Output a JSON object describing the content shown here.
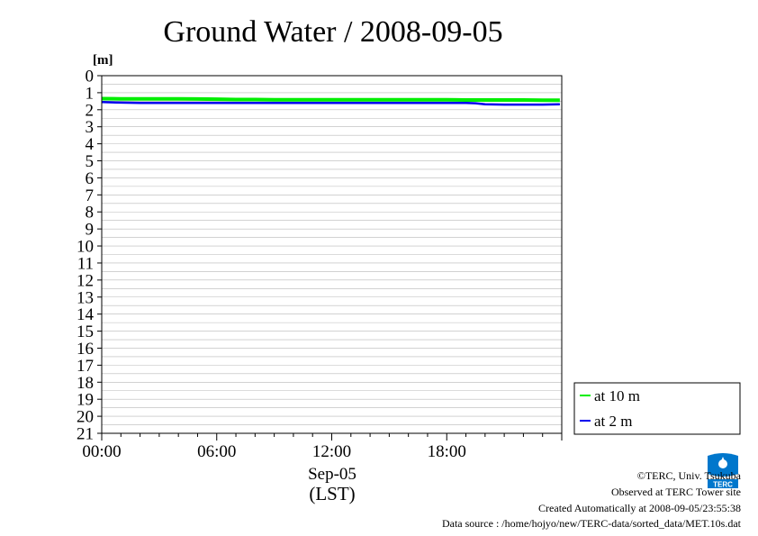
{
  "chart_data": {
    "type": "line",
    "title": "Ground Water / 2008-09-05",
    "ylabel": "[m]",
    "ylim": [
      0,
      21
    ],
    "y_inverted": true,
    "yticks": [
      "0",
      "1",
      "2",
      "3",
      "4",
      "5",
      "6",
      "7",
      "8",
      "9",
      "10",
      "11",
      "12",
      "13",
      "14",
      "15",
      "16",
      "17",
      "18",
      "19",
      "20",
      "21"
    ],
    "xlim": [
      0,
      24
    ],
    "xticks": [
      {
        "value": 0,
        "label": "00:00"
      },
      {
        "value": 6,
        "label": "06:00"
      },
      {
        "value": 12,
        "label": "12:00"
      },
      {
        "value": 18,
        "label": "18:00"
      }
    ],
    "xdate_label": "Sep-05",
    "xunit_label": "(LST)",
    "grid": true,
    "legend_position": "lower-right, outside plot",
    "series": [
      {
        "name": "at 10 m",
        "color": "#00ee00",
        "x": [
          0,
          1,
          2,
          3,
          4,
          5,
          6,
          7,
          8,
          9,
          10,
          11,
          12,
          13,
          14,
          15,
          16,
          17,
          18,
          19,
          20,
          21,
          22,
          23,
          23.9
        ],
        "y": [
          1.35,
          1.36,
          1.36,
          1.36,
          1.36,
          1.37,
          1.38,
          1.4,
          1.4,
          1.41,
          1.41,
          1.41,
          1.41,
          1.42,
          1.42,
          1.42,
          1.42,
          1.42,
          1.42,
          1.43,
          1.43,
          1.43,
          1.43,
          1.44,
          1.44
        ]
      },
      {
        "name": "at 2 m",
        "color": "#0000ee",
        "x": [
          0,
          1,
          2,
          3,
          4,
          5,
          6,
          7,
          8,
          9,
          10,
          11,
          12,
          13,
          14,
          15,
          16,
          17,
          18,
          19,
          19.5,
          20,
          21,
          22,
          23,
          23.9
        ],
        "y": [
          1.55,
          1.58,
          1.6,
          1.6,
          1.6,
          1.6,
          1.6,
          1.6,
          1.6,
          1.6,
          1.6,
          1.6,
          1.6,
          1.6,
          1.6,
          1.6,
          1.6,
          1.6,
          1.6,
          1.6,
          1.62,
          1.68,
          1.7,
          1.7,
          1.7,
          1.68
        ]
      }
    ]
  },
  "footer": {
    "copyright": "©TERC, Univ. Tsukuba",
    "observed": "Observed at TERC Tower site",
    "created": "Created Automatically at 2008-09-05/23:55:38",
    "source": "Data source : /home/hojyo/new/TERC-data/sorted_data/MET.10s.dat"
  },
  "logo": {
    "icon": "terc-logo-icon",
    "text": "TERC",
    "color": "#0077cc"
  }
}
